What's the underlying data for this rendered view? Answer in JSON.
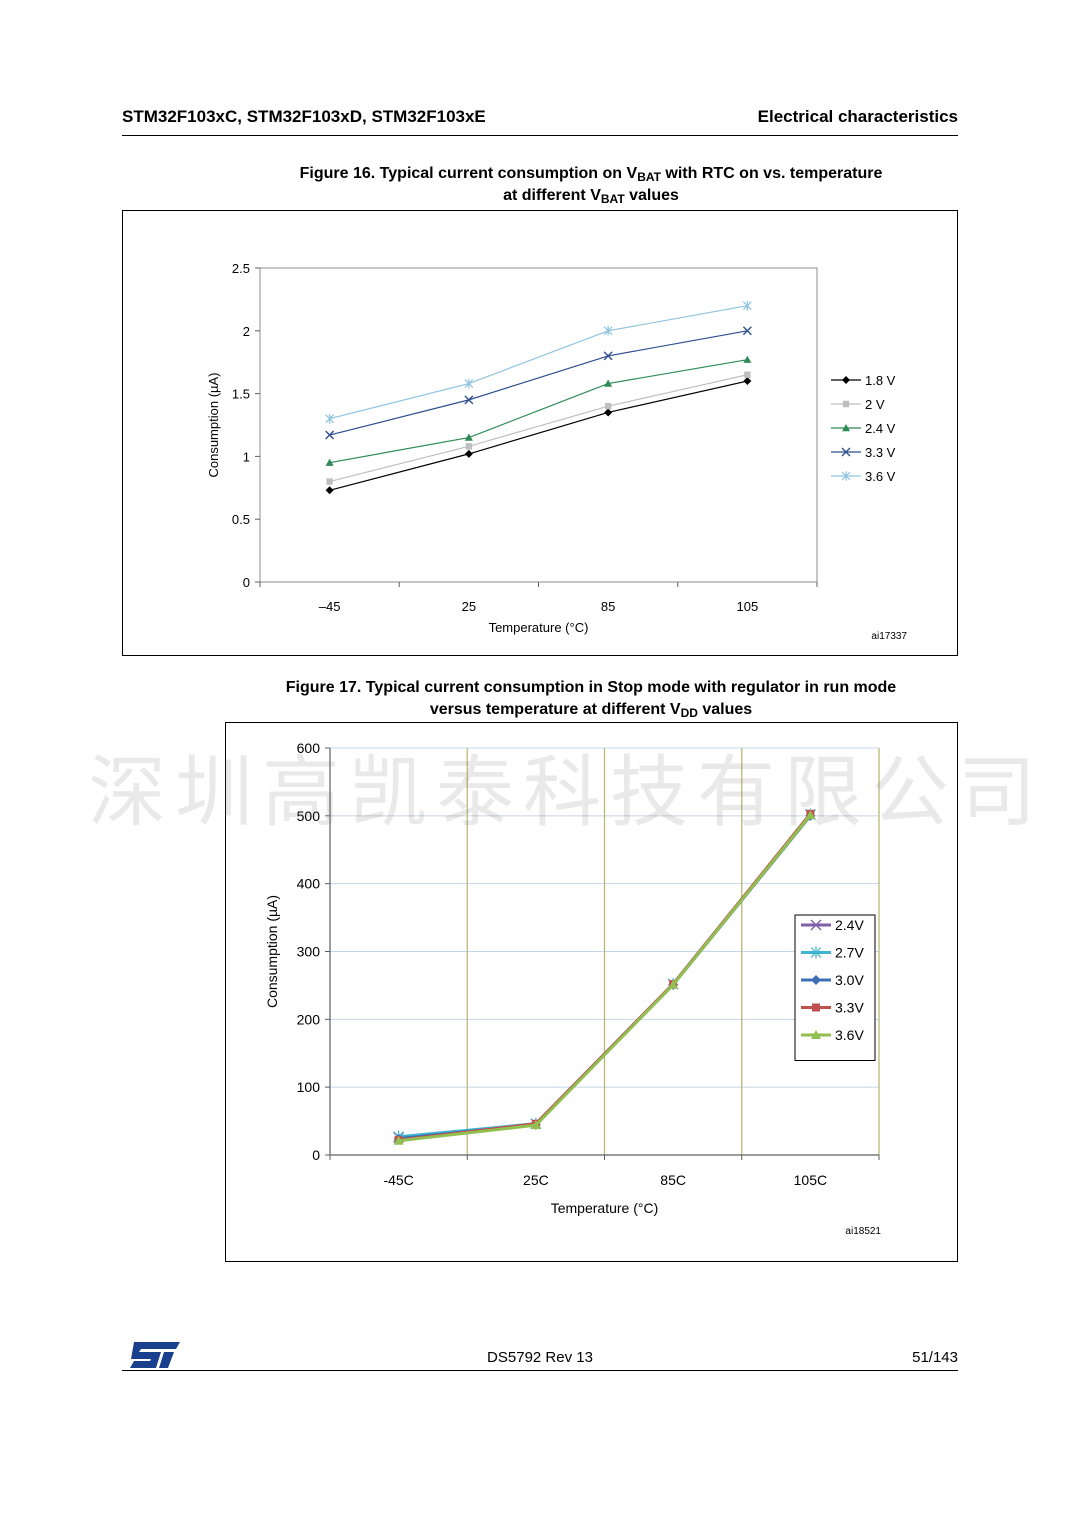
{
  "header": {
    "left": "STM32F103xC, STM32F103xD, STM32F103xE",
    "right": "Electrical characteristics"
  },
  "footer": {
    "doc_id": "DS5792 Rev 13",
    "page": "51/143"
  },
  "watermark": "深圳高凯泰科技有限公司",
  "chart_data": [
    {
      "type": "line",
      "title_parts": [
        "Figure 16. Typical current consumption on V",
        "BAT",
        " with RTC on vs. temperature",
        "at different V",
        "BAT",
        " values"
      ],
      "xlabel": "Temperature (°C)",
      "ylabel": "Consumption (µA)",
      "categories": [
        "–45",
        "25",
        "85",
        "105"
      ],
      "ylim": [
        0,
        2.5
      ],
      "yticks": [
        "0",
        "0.5",
        "1",
        "1.5",
        "2",
        "2.5"
      ],
      "ytick_values": [
        0,
        0.5,
        1,
        1.5,
        2,
        2.5
      ],
      "grid": false,
      "legend_position": "right",
      "ref": "ai17337",
      "series": [
        {
          "name": "1.8 V",
          "values": [
            0.73,
            1.02,
            1.35,
            1.6
          ],
          "color": "#000000",
          "marker": "diamond"
        },
        {
          "name": "2 V",
          "values": [
            0.8,
            1.08,
            1.4,
            1.65
          ],
          "color": "#bfbfbf",
          "marker": "square"
        },
        {
          "name": "2.4 V",
          "values": [
            0.95,
            1.15,
            1.58,
            1.77
          ],
          "color": "#2e8b57",
          "marker": "triangle"
        },
        {
          "name": "3.3 V",
          "values": [
            1.17,
            1.45,
            1.8,
            2.0
          ],
          "color": "#2f4f8f",
          "marker": "x"
        },
        {
          "name": "3.6 V",
          "values": [
            1.3,
            1.58,
            2.0,
            2.2
          ],
          "color": "#8fc3e0",
          "marker": "star"
        }
      ]
    },
    {
      "type": "line",
      "title_parts": [
        "Figure 17. Typical current consumption in Stop mode with regulator in run mode",
        "versus temperature at different V",
        "DD",
        " values"
      ],
      "xlabel": "Temperature (°C)",
      "ylabel": "Consumption (µA)",
      "categories": [
        "-45C",
        "25C",
        "85C",
        "105C"
      ],
      "ylim": [
        0,
        600
      ],
      "yticks": [
        "0",
        "100",
        "200",
        "300",
        "400",
        "500",
        "600"
      ],
      "ytick_values": [
        0,
        100,
        200,
        300,
        400,
        500,
        600
      ],
      "grid": true,
      "legend_position": "right",
      "ref": "ai18521",
      "series": [
        {
          "name": "2.4V",
          "values": [
            26,
            46,
            252,
            502
          ],
          "color": "#7f5fa8",
          "marker": "x"
        },
        {
          "name": "2.7V",
          "values": [
            27,
            46,
            252,
            502
          ],
          "color": "#3fb4cf",
          "marker": "star"
        },
        {
          "name": "3.0V",
          "values": [
            24,
            45,
            251,
            500
          ],
          "color": "#3d6fb5",
          "marker": "diamond"
        },
        {
          "name": "3.3V",
          "values": [
            22,
            46,
            252,
            503
          ],
          "color": "#c0504d",
          "marker": "square"
        },
        {
          "name": "3.6V",
          "values": [
            21,
            44,
            251,
            501
          ],
          "color": "#92c050",
          "marker": "triangle"
        }
      ]
    }
  ]
}
